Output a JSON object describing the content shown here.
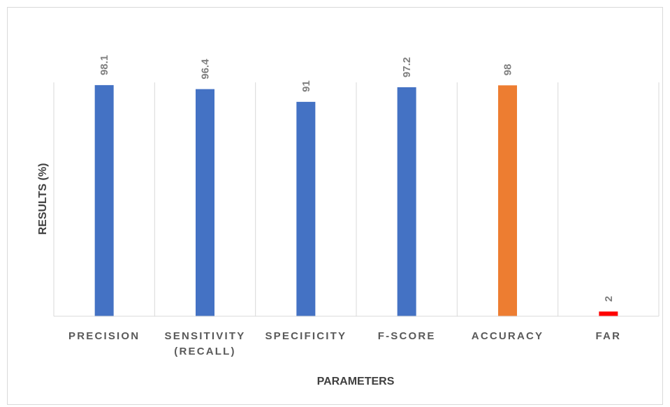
{
  "chart_data": {
    "type": "bar",
    "title": "",
    "xlabel": "PARAMETERS",
    "ylabel": "RESULTS (%)",
    "ylim": [
      0,
      120
    ],
    "grid": "vertical category separators",
    "legend": "none",
    "categories": [
      {
        "lines": [
          "PRECISION"
        ]
      },
      {
        "lines": [
          "SENSITIVITY",
          "(RECALL)"
        ]
      },
      {
        "lines": [
          "SPECIFICITY"
        ]
      },
      {
        "lines": [
          "F-SCORE"
        ]
      },
      {
        "lines": [
          "ACCURACY"
        ]
      },
      {
        "lines": [
          "FAR"
        ]
      }
    ],
    "values": [
      98.1,
      96.4,
      91,
      97.2,
      98,
      2
    ],
    "value_labels": [
      "98.1",
      "96.4",
      "91",
      "97.2",
      "98",
      "2"
    ],
    "colors": [
      "#4472C4",
      "#4472C4",
      "#4472C4",
      "#4472C4",
      "#ED7D31",
      "#FF0000"
    ],
    "value_label_rotation": "vertical"
  }
}
